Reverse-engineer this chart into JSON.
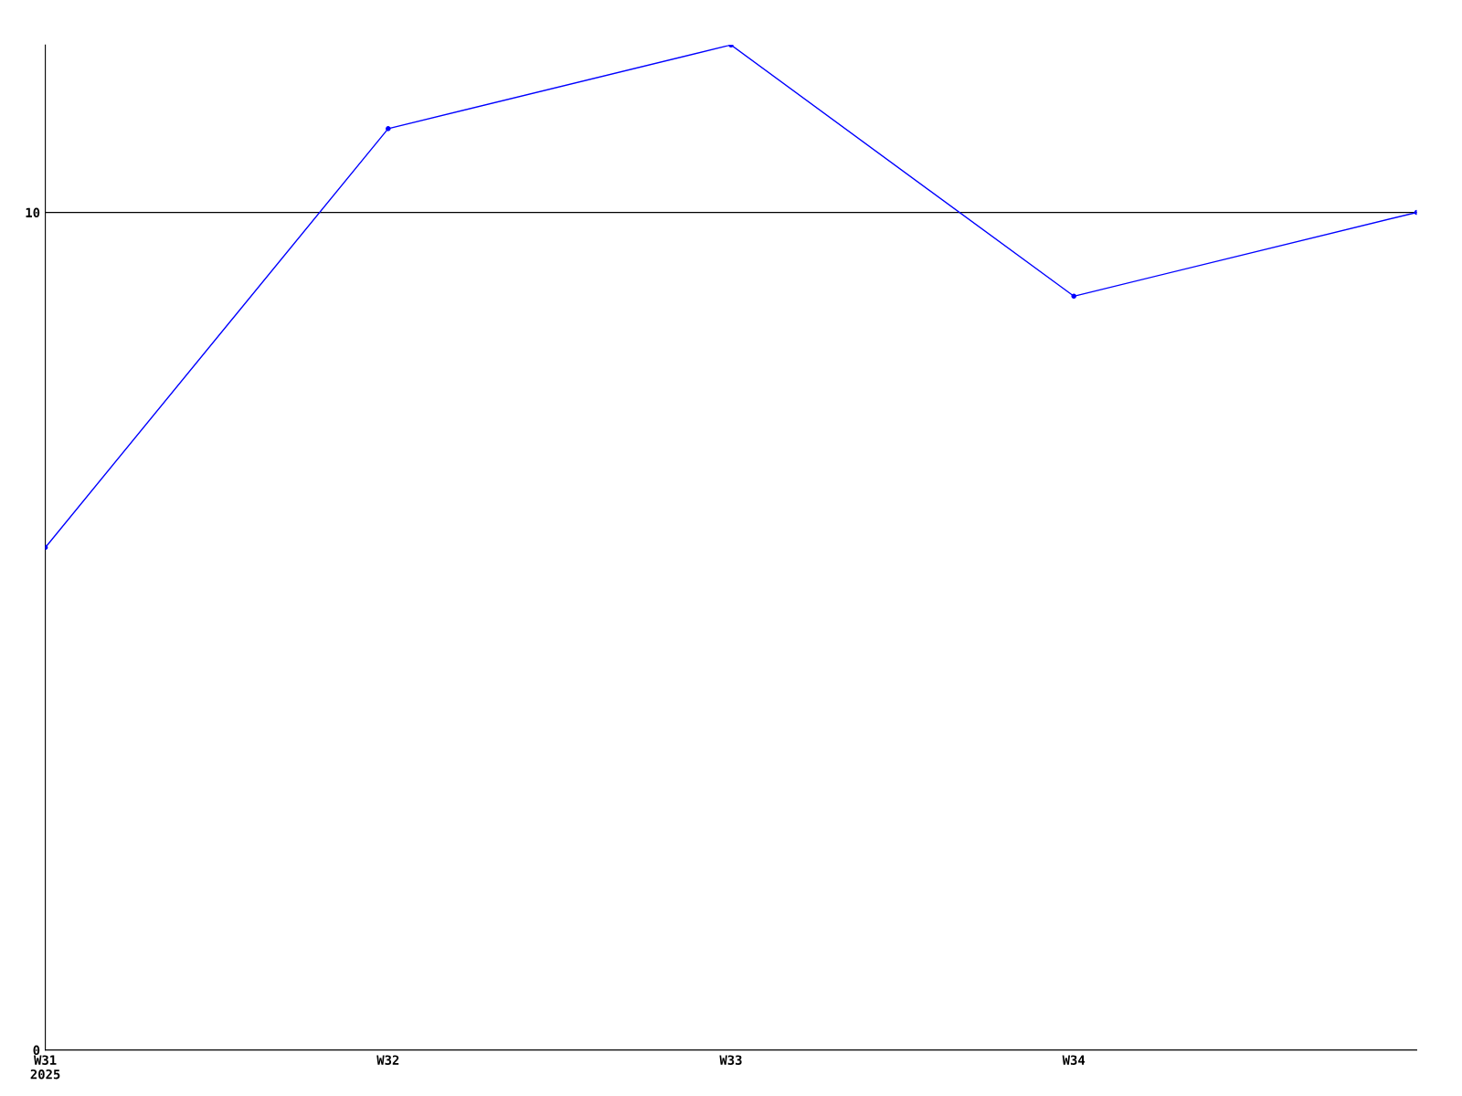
{
  "chart_data": {
    "type": "line",
    "categories": [
      "W31\n2025",
      "W32",
      "W33",
      "W34",
      null
    ],
    "series": [
      {
        "color": "#0000ff",
        "values": [
          6,
          11,
          12,
          9,
          10
        ]
      }
    ],
    "ylim": [
      0,
      12
    ],
    "yticks": [
      0,
      10
    ],
    "grid": "y",
    "marker": "circle",
    "line_style": "solid"
  }
}
